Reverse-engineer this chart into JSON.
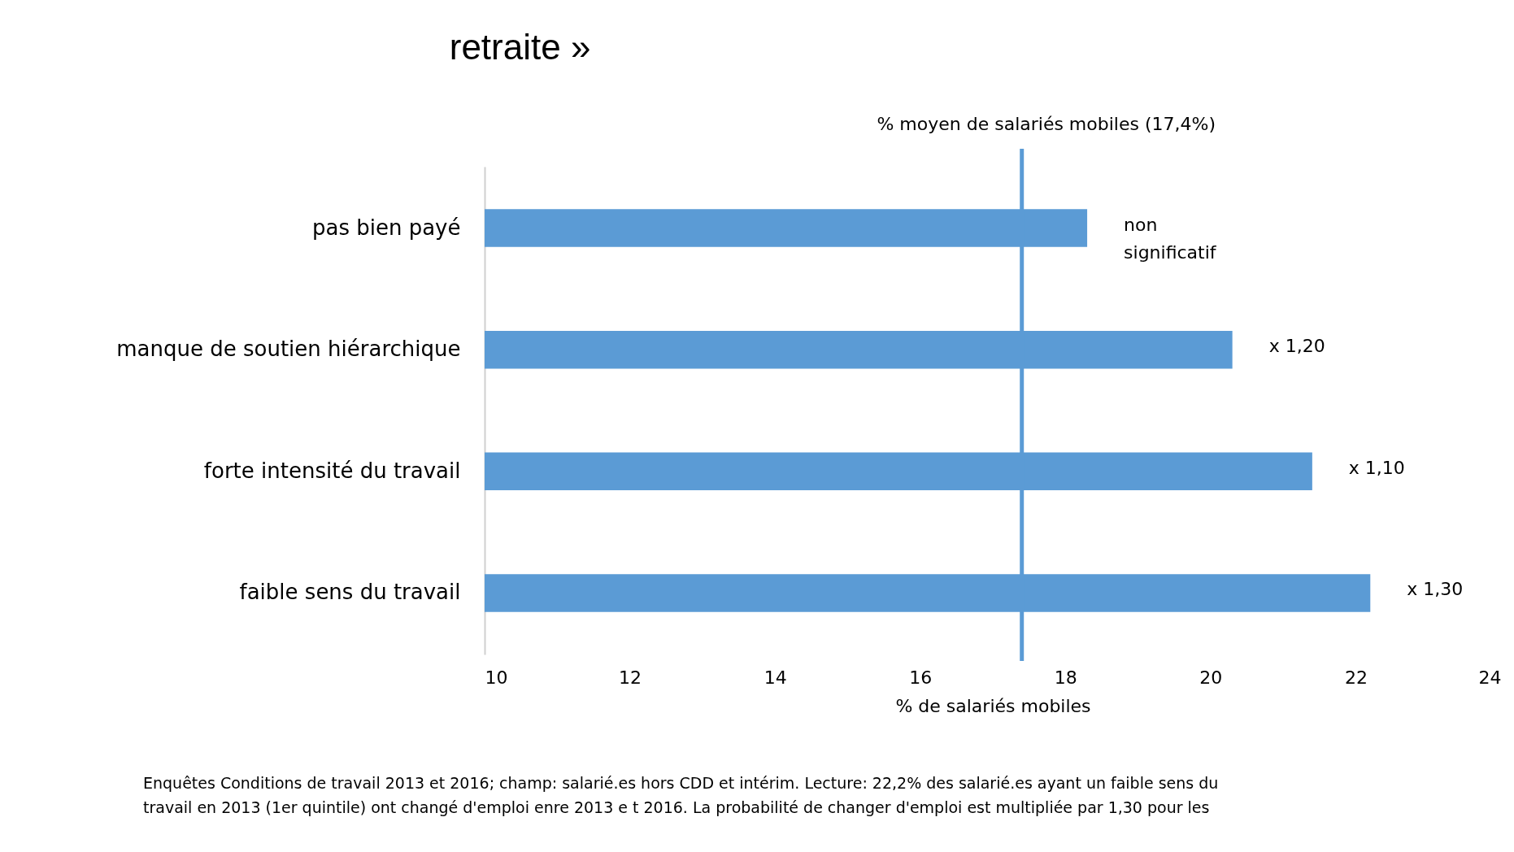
{
  "chart_data": {
    "type": "bar",
    "orientation": "horizontal",
    "title": "retraite »",
    "xlabel": "% de salariés mobiles",
    "categories": [
      "pas bien payé",
      "manque de soutien hiérarchique",
      "forte intensité du travail",
      "faible sens du travail"
    ],
    "values": [
      18.3,
      20.3,
      21.4,
      22.2
    ],
    "color": "#5b9bd5",
    "value_labels": [
      "non\nsignificatif",
      "x 1,20",
      "x 1,10",
      "x 1,30"
    ],
    "xlim": [
      10,
      24
    ],
    "xticks": [
      10,
      12,
      14,
      16,
      18,
      20,
      22,
      24
    ],
    "grid": false,
    "ref_lines": [
      {
        "axis": "x",
        "value": 17.4,
        "label": "% moyen de salariés mobiles (17,4%)",
        "color": "#5b9bd5"
      }
    ],
    "annotations": [
      "Enquêtes Conditions de travail 2013 et 2016; champ: salarié.es hors CDD et intérim. Lecture: 22,2% des salarié.es ayant un faible sens du",
      "travail en 2013 (1er quintile) ont changé d'emploi enre 2013 e t 2016. La probabilité de changer d'emploi est multipliée par  1,30 pour les"
    ]
  }
}
